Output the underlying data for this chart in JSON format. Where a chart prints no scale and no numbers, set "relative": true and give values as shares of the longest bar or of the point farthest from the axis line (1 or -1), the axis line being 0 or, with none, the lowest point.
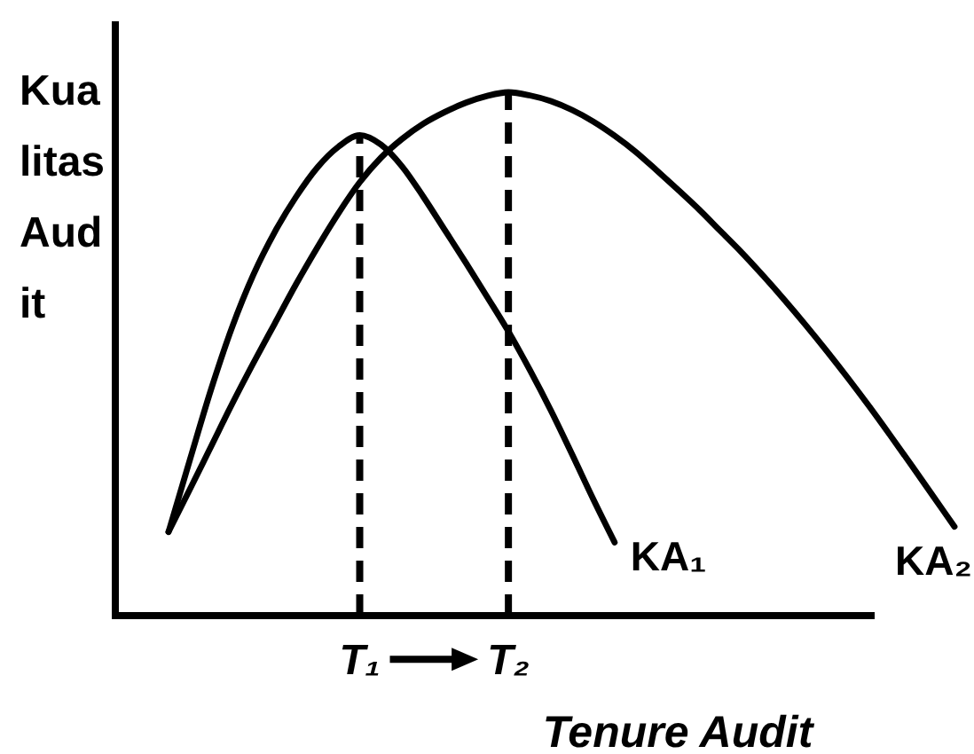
{
  "chart_data": {
    "type": "line",
    "relative": true,
    "ylabel": "Kualitas Audit",
    "xlabel": "Tenure Audit",
    "categories": [
      null,
      null,
      null,
      null,
      null,
      null,
      null,
      null,
      null,
      "T₁",
      null,
      null,
      null,
      null,
      null,
      null,
      "T₂",
      null,
      null,
      null,
      null,
      null,
      null,
      null,
      null,
      null,
      null,
      null,
      null,
      null,
      null,
      null,
      null,
      null,
      null,
      null,
      null,
      null
    ],
    "series": [
      {
        "name": "KA₁",
        "color": "#000000",
        "values": [
          0.16,
          0.297,
          0.432,
          0.552,
          0.652,
          0.733,
          0.8,
          0.856,
          0.896,
          0.918,
          0.9,
          0.858,
          0.8,
          0.737,
          0.674,
          0.609,
          0.543,
          0.47,
          0.392,
          0.308,
          0.222,
          0.14,
          null,
          null,
          null,
          null,
          null,
          null,
          null,
          null,
          null,
          null,
          null,
          null,
          null,
          null,
          null,
          null
        ]
      },
      {
        "name": "KA₂",
        "color": "#000000",
        "values": [
          0.16,
          0.241,
          0.323,
          0.405,
          0.483,
          0.558,
          0.633,
          0.703,
          0.769,
          0.828,
          0.875,
          0.911,
          0.94,
          0.962,
          0.98,
          0.993,
          1.0,
          0.994,
          0.983,
          0.966,
          0.944,
          0.917,
          0.886,
          0.85,
          0.813,
          0.775,
          0.734,
          0.693,
          0.649,
          0.603,
          0.555,
          0.505,
          0.453,
          0.399,
          0.343,
          0.286,
          0.228,
          0.17
        ]
      }
    ],
    "ref_lines": [
      {
        "axis": "x",
        "value": "T₁",
        "line_style": "dashed",
        "color": "#000000"
      },
      {
        "axis": "x",
        "value": "T₂",
        "line_style": "dashed",
        "color": "#000000"
      }
    ],
    "marker": "none",
    "line_style": "solid"
  }
}
